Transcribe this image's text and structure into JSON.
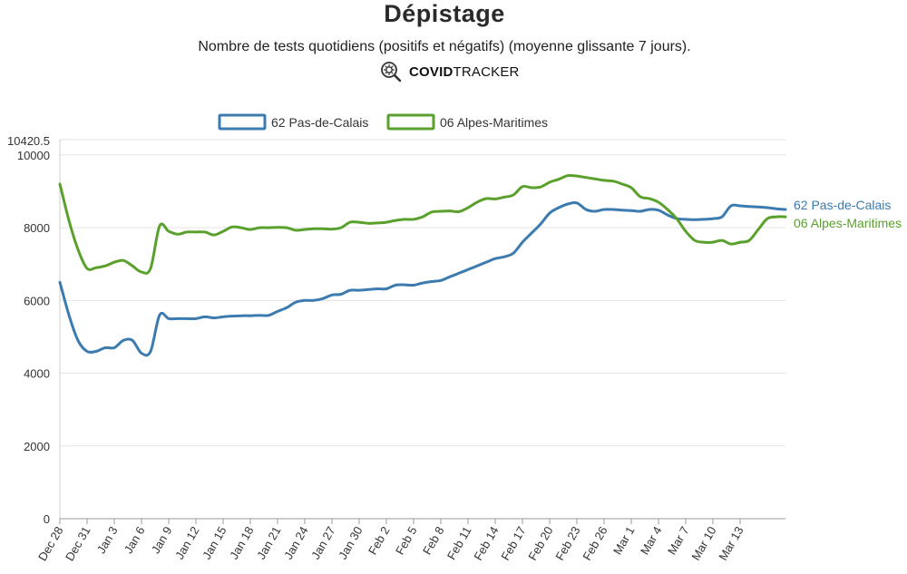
{
  "header": {
    "title": "Dépistage",
    "subtitle": "Nombre de tests quotidiens (positifs et négatifs) (moyenne glissante 7 jours).",
    "brand_bold": "COVID",
    "brand_rest": "TRACKER",
    "brand_icon": "virus-magnifier-icon"
  },
  "chart_data": {
    "type": "line",
    "title": "Dépistage",
    "subtitle": "Nombre de tests quotidiens (positifs et négatifs) (moyenne glissante 7 jours).",
    "xlabel": "",
    "ylabel": "",
    "ylim": [
      0,
      10420.5
    ],
    "y_ticks": [
      "0",
      "2000",
      "4000",
      "6000",
      "8000",
      "10000",
      "10420.5"
    ],
    "x_ticks": [
      "Dec 28",
      "Dec 31",
      "Jan 3",
      "Jan 6",
      "Jan 9",
      "Jan 12",
      "Jan 15",
      "Jan 18",
      "Jan 21",
      "Jan 24",
      "Jan 27",
      "Jan 30",
      "Feb 2",
      "Feb 5",
      "Feb 8",
      "Feb 11",
      "Feb 14",
      "Feb 17",
      "Feb 20",
      "Feb 23",
      "Feb 26",
      "Mar 1",
      "Mar 4",
      "Mar 7",
      "Mar 10",
      "Mar 13"
    ],
    "legend_position": "top",
    "grid": true,
    "series": [
      {
        "name": "62 Pas-de-Calais",
        "color": "#3b7bb0",
        "values": [
          6500,
          5600,
          4900,
          4600,
          4600,
          4700,
          4700,
          4900,
          4900,
          4550,
          4600,
          5600,
          5500,
          5500,
          5500,
          5500,
          5550,
          5520,
          5550,
          5570,
          5580,
          5580,
          5590,
          5590,
          5700,
          5800,
          5950,
          6000,
          6000,
          6050,
          6150,
          6170,
          6280,
          6280,
          6300,
          6320,
          6320,
          6420,
          6430,
          6420,
          6480,
          6520,
          6550,
          6650,
          6750,
          6850,
          6950,
          7050,
          7150,
          7200,
          7300,
          7600,
          7850,
          8100,
          8400,
          8550,
          8650,
          8680,
          8500,
          8450,
          8500,
          8500,
          8480,
          8470,
          8450,
          8500,
          8480,
          8350,
          8250,
          8230,
          8220,
          8230,
          8250,
          8300,
          8600,
          8600,
          8580,
          8570,
          8550,
          8520,
          8500
        ]
      },
      {
        "name": "06 Alpes-Maritimes",
        "color": "#5aa02c",
        "values": [
          9200,
          8200,
          7400,
          6880,
          6900,
          6950,
          7050,
          7100,
          6950,
          6780,
          6880,
          8050,
          7900,
          7820,
          7880,
          7880,
          7880,
          7800,
          7900,
          8020,
          8000,
          7950,
          8000,
          8000,
          8010,
          8000,
          7930,
          7950,
          7970,
          7970,
          7960,
          8000,
          8150,
          8150,
          8120,
          8130,
          8150,
          8200,
          8230,
          8230,
          8300,
          8430,
          8450,
          8460,
          8440,
          8550,
          8700,
          8800,
          8790,
          8840,
          8900,
          9130,
          9100,
          9120,
          9250,
          9330,
          9430,
          9420,
          9380,
          9340,
          9300,
          9280,
          9200,
          9100,
          8850,
          8800,
          8700,
          8500,
          8250,
          7900,
          7650,
          7600,
          7600,
          7650,
          7550,
          7600,
          7650,
          7950,
          8250,
          8300,
          8300
        ]
      }
    ]
  }
}
